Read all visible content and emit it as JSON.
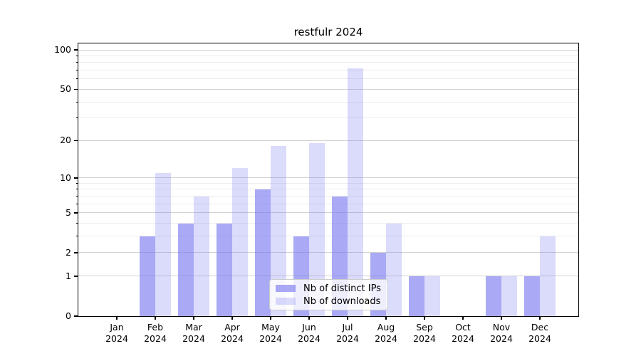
{
  "title": "restfulr 2024",
  "chart_data": {
    "type": "bar",
    "title": "restfulr 2024",
    "categories": [
      "Jan",
      "Feb",
      "Mar",
      "Apr",
      "May",
      "Jun",
      "Jul",
      "Aug",
      "Sep",
      "Oct",
      "Nov",
      "Dec"
    ],
    "year_label": "2024",
    "series": [
      {
        "name": "Nb of distinct IPs",
        "key": "distinct-ips",
        "color": "#7b7bf0a6",
        "values": [
          0,
          3,
          4,
          4,
          8,
          3,
          7,
          2,
          1,
          0,
          1,
          1
        ]
      },
      {
        "name": "Nb of downloads",
        "key": "downloads",
        "color": "#7b7bf045",
        "values": [
          0,
          11,
          7,
          12,
          18,
          19,
          72,
          4,
          1,
          0,
          1,
          3
        ]
      }
    ],
    "xlabel": "",
    "ylabel": "",
    "y_axis": {
      "scale": "log1p",
      "ticks": [
        0,
        1,
        2,
        5,
        10,
        20,
        50,
        100
      ],
      "minor_gridlines": [
        3,
        4,
        6,
        7,
        8,
        9,
        30,
        40,
        60,
        70,
        80,
        90
      ],
      "ylim": [
        0,
        112
      ]
    },
    "legend": {
      "position": "lower-center",
      "entries": [
        "Nb of distinct IPs",
        "Nb of downloads"
      ]
    },
    "grid": {
      "major_color": "#d2d2d2",
      "minor_color": "#ececec"
    },
    "colors": {
      "axis": "#000000",
      "background": "#ffffff",
      "text": "#000000"
    }
  }
}
